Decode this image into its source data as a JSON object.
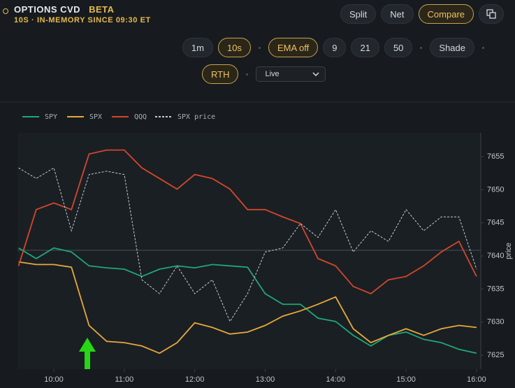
{
  "header": {
    "title": "OPTIONS CVD",
    "badge": "BETA",
    "subtitle": "10S · IN-MEMORY SINCE 09:30 ET"
  },
  "view_buttons": [
    {
      "label": "Split",
      "active": false
    },
    {
      "label": "Net",
      "active": false
    },
    {
      "label": "Compare",
      "active": true
    }
  ],
  "toolbar": [
    {
      "label": "1m",
      "active": false
    },
    {
      "label": "10s",
      "active": true
    },
    {
      "label": "EMA off",
      "active": true
    },
    {
      "label": "9",
      "active": false
    },
    {
      "label": "21",
      "active": false
    },
    {
      "label": "50",
      "active": false
    },
    {
      "label": "Shade",
      "active": false
    }
  ],
  "rth": {
    "label": "RTH",
    "active": true
  },
  "mode_select": {
    "options": [
      "Live"
    ]
  },
  "chart_data": {
    "type": "line",
    "y2label": "price",
    "x": [
      9.5,
      9.75,
      10,
      10.25,
      10.5,
      10.75,
      11,
      11.25,
      11.5,
      11.75,
      12,
      12.25,
      12.5,
      12.75,
      13,
      13.25,
      13.5,
      13.75,
      14,
      14.25,
      14.5,
      14.75,
      15,
      15.25,
      15.5,
      15.75,
      16
    ],
    "xlim": [
      9.484,
      16.06
    ],
    "xticks": [
      {
        "value": 10,
        "label": "10:00"
      },
      {
        "value": 11,
        "label": "11:00"
      },
      {
        "value": 12,
        "label": "12:00"
      },
      {
        "value": 13,
        "label": "13:00"
      },
      {
        "value": 14,
        "label": "14:00"
      },
      {
        "value": 15,
        "label": "15:00"
      },
      {
        "value": 16,
        "label": "16:00"
      }
    ],
    "y2lim": [
      7622.9,
      7658.6
    ],
    "y2ticks": [
      7625,
      7630,
      7635,
      7640,
      7645,
      7650,
      7655
    ],
    "series": [
      {
        "name": "SPY",
        "color": "#1fa874",
        "dash": false,
        "values": [
          7641.2,
          7639.6,
          7641.2,
          7640.6,
          7638.5,
          7638.2,
          7638.0,
          7636.9,
          7638.0,
          7638.5,
          7638.2,
          7638.7,
          7638.5,
          7638.3,
          7634.3,
          7632.7,
          7632.7,
          7630.6,
          7630.1,
          7628.0,
          7626.4,
          7628.0,
          7628.5,
          7627.4,
          7626.9,
          7625.9,
          7625.3
        ]
      },
      {
        "name": "SPX",
        "color": "#e6a93a",
        "dash": false,
        "values": [
          7639.1,
          7638.7,
          7638.7,
          7638.3,
          7629.5,
          7627.1,
          7626.9,
          7626.4,
          7625.3,
          7626.9,
          7629.9,
          7629.2,
          7628.2,
          7628.5,
          7629.5,
          7630.9,
          7631.7,
          7632.7,
          7633.8,
          7629.0,
          7626.9,
          7628.0,
          7629.0,
          7628.0,
          7629.0,
          7629.5,
          7629.2
        ]
      },
      {
        "name": "QQQ",
        "color": "#d2472a",
        "dash": false,
        "values": [
          7638.5,
          7647.0,
          7648.0,
          7647.0,
          7655.4,
          7656.0,
          7656.0,
          7653.3,
          7651.7,
          7650.1,
          7652.3,
          7651.7,
          7650.1,
          7647.0,
          7647.0,
          7645.9,
          7644.9,
          7639.6,
          7638.5,
          7635.4,
          7634.3,
          7636.4,
          7636.9,
          7638.5,
          7640.6,
          7642.2,
          7636.9
        ]
      },
      {
        "name": "SPX price",
        "color": "#c8ccd0",
        "dash": true,
        "axis": "y2",
        "values": [
          7653.3,
          7651.7,
          7653.3,
          7643.8,
          7652.3,
          7652.8,
          7652.3,
          7636.4,
          7634.3,
          7638.5,
          7634.3,
          7636.4,
          7630.1,
          7634.3,
          7640.6,
          7641.2,
          7644.9,
          7642.8,
          7647.0,
          7640.6,
          7643.8,
          7642.2,
          7647.0,
          7643.8,
          7645.9,
          7645.9,
          7638.0
        ]
      }
    ]
  }
}
